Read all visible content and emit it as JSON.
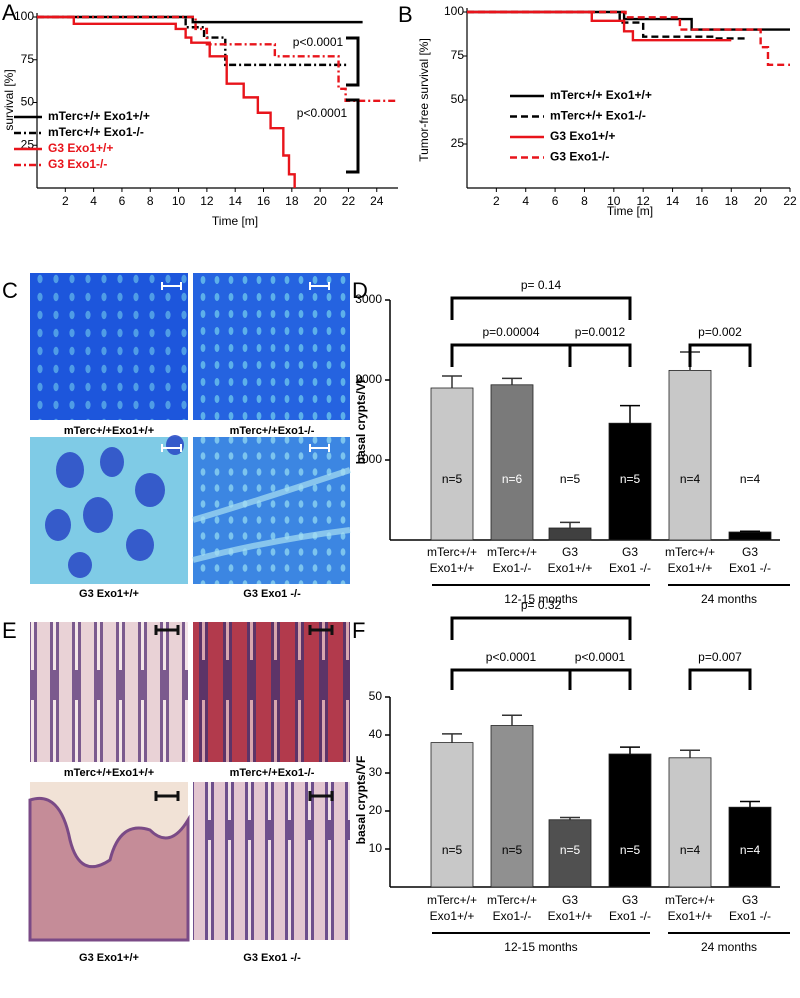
{
  "chart_data": [
    {
      "panel_label": "A",
      "type": "line",
      "step": true,
      "x_label": "Time [m]",
      "y_label": "survival [%]",
      "xlim": [
        0,
        25.5
      ],
      "ylim": [
        0,
        100
      ],
      "xticks": [
        2,
        4,
        6,
        8,
        10,
        12,
        14,
        16,
        18,
        20,
        22,
        24
      ],
      "yticks": [
        25,
        50,
        75,
        100
      ],
      "legend_text_colored": true,
      "series": [
        {
          "name": "mTerc+/+ Exo1+/+",
          "color": "#000000",
          "dash": "solid",
          "x": [
            0,
            11,
            23
          ],
          "values": [
            100,
            97,
            97
          ]
        },
        {
          "name": "mTerc+/+ Exo1-/-",
          "color": "#000000",
          "dash": "dashdot",
          "x": [
            0,
            10.5,
            11.8,
            13.3,
            22
          ],
          "values": [
            100,
            94,
            88,
            72,
            72
          ]
        },
        {
          "name": "G3 Exo1+/+",
          "color": "#e8141b",
          "dash": "solid",
          "x": [
            0,
            2.6,
            9.8,
            10.5,
            10.9,
            12.2,
            13.4,
            14.6,
            15.6,
            16.5,
            17.4,
            17.8,
            18.2
          ],
          "values": [
            100,
            96,
            93,
            88,
            85,
            77,
            61,
            53,
            44,
            35,
            19,
            8,
            0
          ]
        },
        {
          "name": "G3 Exo1-/-",
          "color": "#e8141b",
          "dash": "dashdot",
          "x": [
            0,
            11.2,
            12,
            16.8,
            21.3,
            21.8,
            25.4
          ],
          "values": [
            100,
            93,
            84,
            77,
            58,
            51,
            51
          ]
        }
      ],
      "annotations": [
        "p<0.0001",
        "p<0.0001"
      ]
    },
    {
      "panel_label": "B",
      "type": "line",
      "step": true,
      "x_label": "Time  [m]",
      "y_label": "Tumor-free survival [%]",
      "xlim": [
        0,
        22
      ],
      "ylim": [
        0,
        100
      ],
      "xticks": [
        2,
        4,
        6,
        8,
        10,
        12,
        14,
        16,
        18,
        20,
        22
      ],
      "yticks": [
        25,
        50,
        75,
        100
      ],
      "legend_text_colored": false,
      "series": [
        {
          "name": "mTerc+/+ Exo1+/+",
          "color": "#000000",
          "dash": "solid",
          "x": [
            0,
            10.7,
            15.3,
            22
          ],
          "values": [
            100,
            96,
            90,
            90
          ]
        },
        {
          "name": "mTerc+/+ Exo1-/-",
          "color": "#000000",
          "dash": "dash",
          "x": [
            0,
            10.4,
            12,
            16.8,
            19
          ],
          "values": [
            100,
            94,
            86,
            85,
            85
          ]
        },
        {
          "name": "G3 Exo1+/+",
          "color": "#e8141b",
          "dash": "solid",
          "x": [
            0,
            8.5,
            10.7,
            11.3,
            18
          ],
          "values": [
            100,
            95,
            89,
            84,
            84
          ]
        },
        {
          "name": "G3 Exo1-/-",
          "color": "#e8141b",
          "dash": "dash",
          "x": [
            0,
            10.8,
            14.5,
            20,
            20.5,
            22
          ],
          "values": [
            100,
            97,
            90,
            80,
            70,
            70
          ]
        }
      ],
      "annotations": []
    },
    {
      "panel_label": "D",
      "type": "bar",
      "y_label": "basal crypts/VF",
      "ylim": [
        0,
        3000
      ],
      "yticks": [
        1000,
        2000,
        3000
      ],
      "categories": [
        [
          "mTerc+/+",
          "Exo1+/+"
        ],
        [
          "mTerc+/+",
          "Exo1-/-"
        ],
        [
          "G3",
          "Exo1+/+"
        ],
        [
          "G3",
          "Exo1 -/-"
        ],
        [
          "mTerc+/+",
          "Exo1+/+"
        ],
        [
          "G3",
          "Exo1 -/-"
        ]
      ],
      "values": [
        1900,
        1940,
        150,
        1460,
        2120,
        100
      ],
      "errors": [
        150,
        80,
        70,
        220,
        230,
        10
      ],
      "colors": [
        "#c8c8c8",
        "#7a7a7a",
        "#404040",
        "#000000",
        "#c8c8c8",
        "#000000"
      ],
      "bar_labels": [
        "n=5",
        "n=6",
        "n=5",
        "n=5",
        "n=4",
        "n=4"
      ],
      "groups": [
        "12-15 months",
        "24 months"
      ],
      "annotations": [
        "p= 0.14",
        "p=0.00004",
        "p=0.0012",
        "p=0.002"
      ]
    },
    {
      "panel_label": "F",
      "type": "bar",
      "y_label": "basal crypts/VF",
      "ylim": [
        0,
        50
      ],
      "yticks": [
        10,
        20,
        30,
        40,
        50
      ],
      "categories": [
        [
          "mTerc+/+",
          "Exo1+/+"
        ],
        [
          "mTerc+/+",
          "Exo1-/-"
        ],
        [
          "G3",
          "Exo1+/+"
        ],
        [
          "G3",
          "Exo1 -/-"
        ],
        [
          "mTerc+/+",
          "Exo1+/+"
        ],
        [
          "G3",
          "Exo1 -/-"
        ]
      ],
      "values": [
        38,
        42.5,
        17.7,
        35,
        34,
        21
      ],
      "errors": [
        2.3,
        2.7,
        0.6,
        1.8,
        2,
        1.5
      ],
      "colors": [
        "#c8c8c8",
        "#909090",
        "#505050",
        "#000000",
        "#c8c8c8",
        "#000000"
      ],
      "bar_labels": [
        "n=5",
        "n=5",
        "n=5",
        "n=5",
        "n=4",
        "n=4"
      ],
      "groups": [
        "12-15 months",
        "24 months"
      ],
      "annotations": [
        "p= 0.32",
        "p<0.0001",
        "p<0.0001",
        "p=0.007"
      ]
    }
  ],
  "image_panels": [
    {
      "panel_label": "C",
      "captions": [
        "mTerc+/+Exo1+/+",
        "mTerc+/+Exo1-/-",
        "G3 Exo1+/+",
        "G3 Exo1 -/-"
      ]
    },
    {
      "panel_label": "E",
      "captions": [
        "mTerc+/+Exo1+/+",
        "mTerc+/+Exo1-/-",
        "G3 Exo1+/+",
        "G3 Exo1 -/-"
      ]
    }
  ]
}
